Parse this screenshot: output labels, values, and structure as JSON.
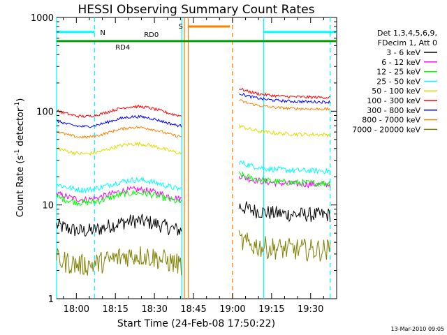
{
  "chart_data": {
    "type": "line",
    "title": "HESSI Observing Summary Count Rates",
    "xlabel": "Start Time (24-Feb-08 17:50:22)",
    "ylabel_main": "Count Rate (s",
    "ylabel_sup1": "-1",
    "ylabel_mid": " detector",
    "ylabel_sup2": "-1",
    "ylabel_end": ")",
    "yscale": "log",
    "ylim": [
      1,
      1000
    ],
    "xlim_minutes": [
      -7.6,
      100
    ],
    "x_ticks": [
      "18:00",
      "18:15",
      "18:30",
      "18:45",
      "19:00",
      "19:15",
      "19:30"
    ],
    "x_tick_minutes": [
      0,
      15,
      30,
      45,
      60,
      75,
      90
    ],
    "y_ticks": [
      "1",
      "10",
      "100",
      "1000"
    ],
    "y_tick_values": [
      1,
      10,
      100,
      1000
    ],
    "legend_header": [
      "Det 1,3,4,5,6,9,",
      "FDecim 1, Att 0"
    ],
    "legend_position": "right",
    "date_stamp": "13-Mar-2010 09:05",
    "flags": {
      "night": {
        "label": "N",
        "value": 700,
        "color": "#00ffff",
        "segments": [
          [
            -7.6,
            7
          ],
          [
            72,
            100
          ]
        ]
      },
      "saa": {
        "label": "S",
        "value": 800,
        "color": "#ff8000",
        "segments": [
          [
            43,
            59
          ]
        ]
      },
      "rd0": {
        "label": "RD0",
        "value": 600,
        "color": "#00a000"
      },
      "rd4": {
        "label": "RD4",
        "value": 560,
        "color": "#00a000"
      }
    },
    "vlines": [
      {
        "x": -7.6,
        "color": "#00ffff",
        "style": "solid"
      },
      {
        "x": 7,
        "color": "#00ffff",
        "style": "dashed"
      },
      {
        "x": 40.5,
        "color": "#00ffff",
        "style": "solid"
      },
      {
        "x": 41.5,
        "color": "#ff8000",
        "style": "solid"
      },
      {
        "x": 43,
        "color": "#ff8000",
        "style": "solid"
      },
      {
        "x": 60,
        "color": "#ff8000",
        "style": "dashed"
      },
      {
        "x": 72,
        "color": "#00ffff",
        "style": "solid"
      },
      {
        "x": 97.5,
        "color": "#00ffff",
        "style": "dashed"
      }
    ],
    "gap_minutes": [
      40.5,
      62.5
    ],
    "series": [
      {
        "name": "3 - 6 keV",
        "color": "#000000",
        "level1": 6,
        "level2": 7.8,
        "noise": 0.08
      },
      {
        "name": "6 - 12 keV",
        "color": "#ff00ff",
        "level1": 13,
        "level2": 16.5,
        "noise": 0.035
      },
      {
        "name": "12 - 25 keV",
        "color": "#00ff00",
        "level1": 12,
        "level2": 17,
        "noise": 0.035
      },
      {
        "name": "25 - 50 keV",
        "color": "#00ffff",
        "level1": 16.5,
        "level2": 23,
        "noise": 0.03
      },
      {
        "name": "50 - 100 keV",
        "color": "#dddd00",
        "level1": 40,
        "level2": 56,
        "noise": 0.02
      },
      {
        "name": "100 - 300 keV",
        "color": "#ff0000",
        "level1": 100,
        "level2": 140,
        "noise": 0.015
      },
      {
        "name": "300 - 800 keV",
        "color": "#0000ff",
        "level1": 78,
        "level2": 125,
        "noise": 0.015
      },
      {
        "name": "800 - 7000 keV",
        "color": "#ff8000",
        "level1": 60,
        "level2": 105,
        "noise": 0.015
      },
      {
        "name": "7000 - 20000 keV",
        "color": "#808000",
        "level1": 2.6,
        "level2": 3.3,
        "noise": 0.12
      }
    ]
  }
}
